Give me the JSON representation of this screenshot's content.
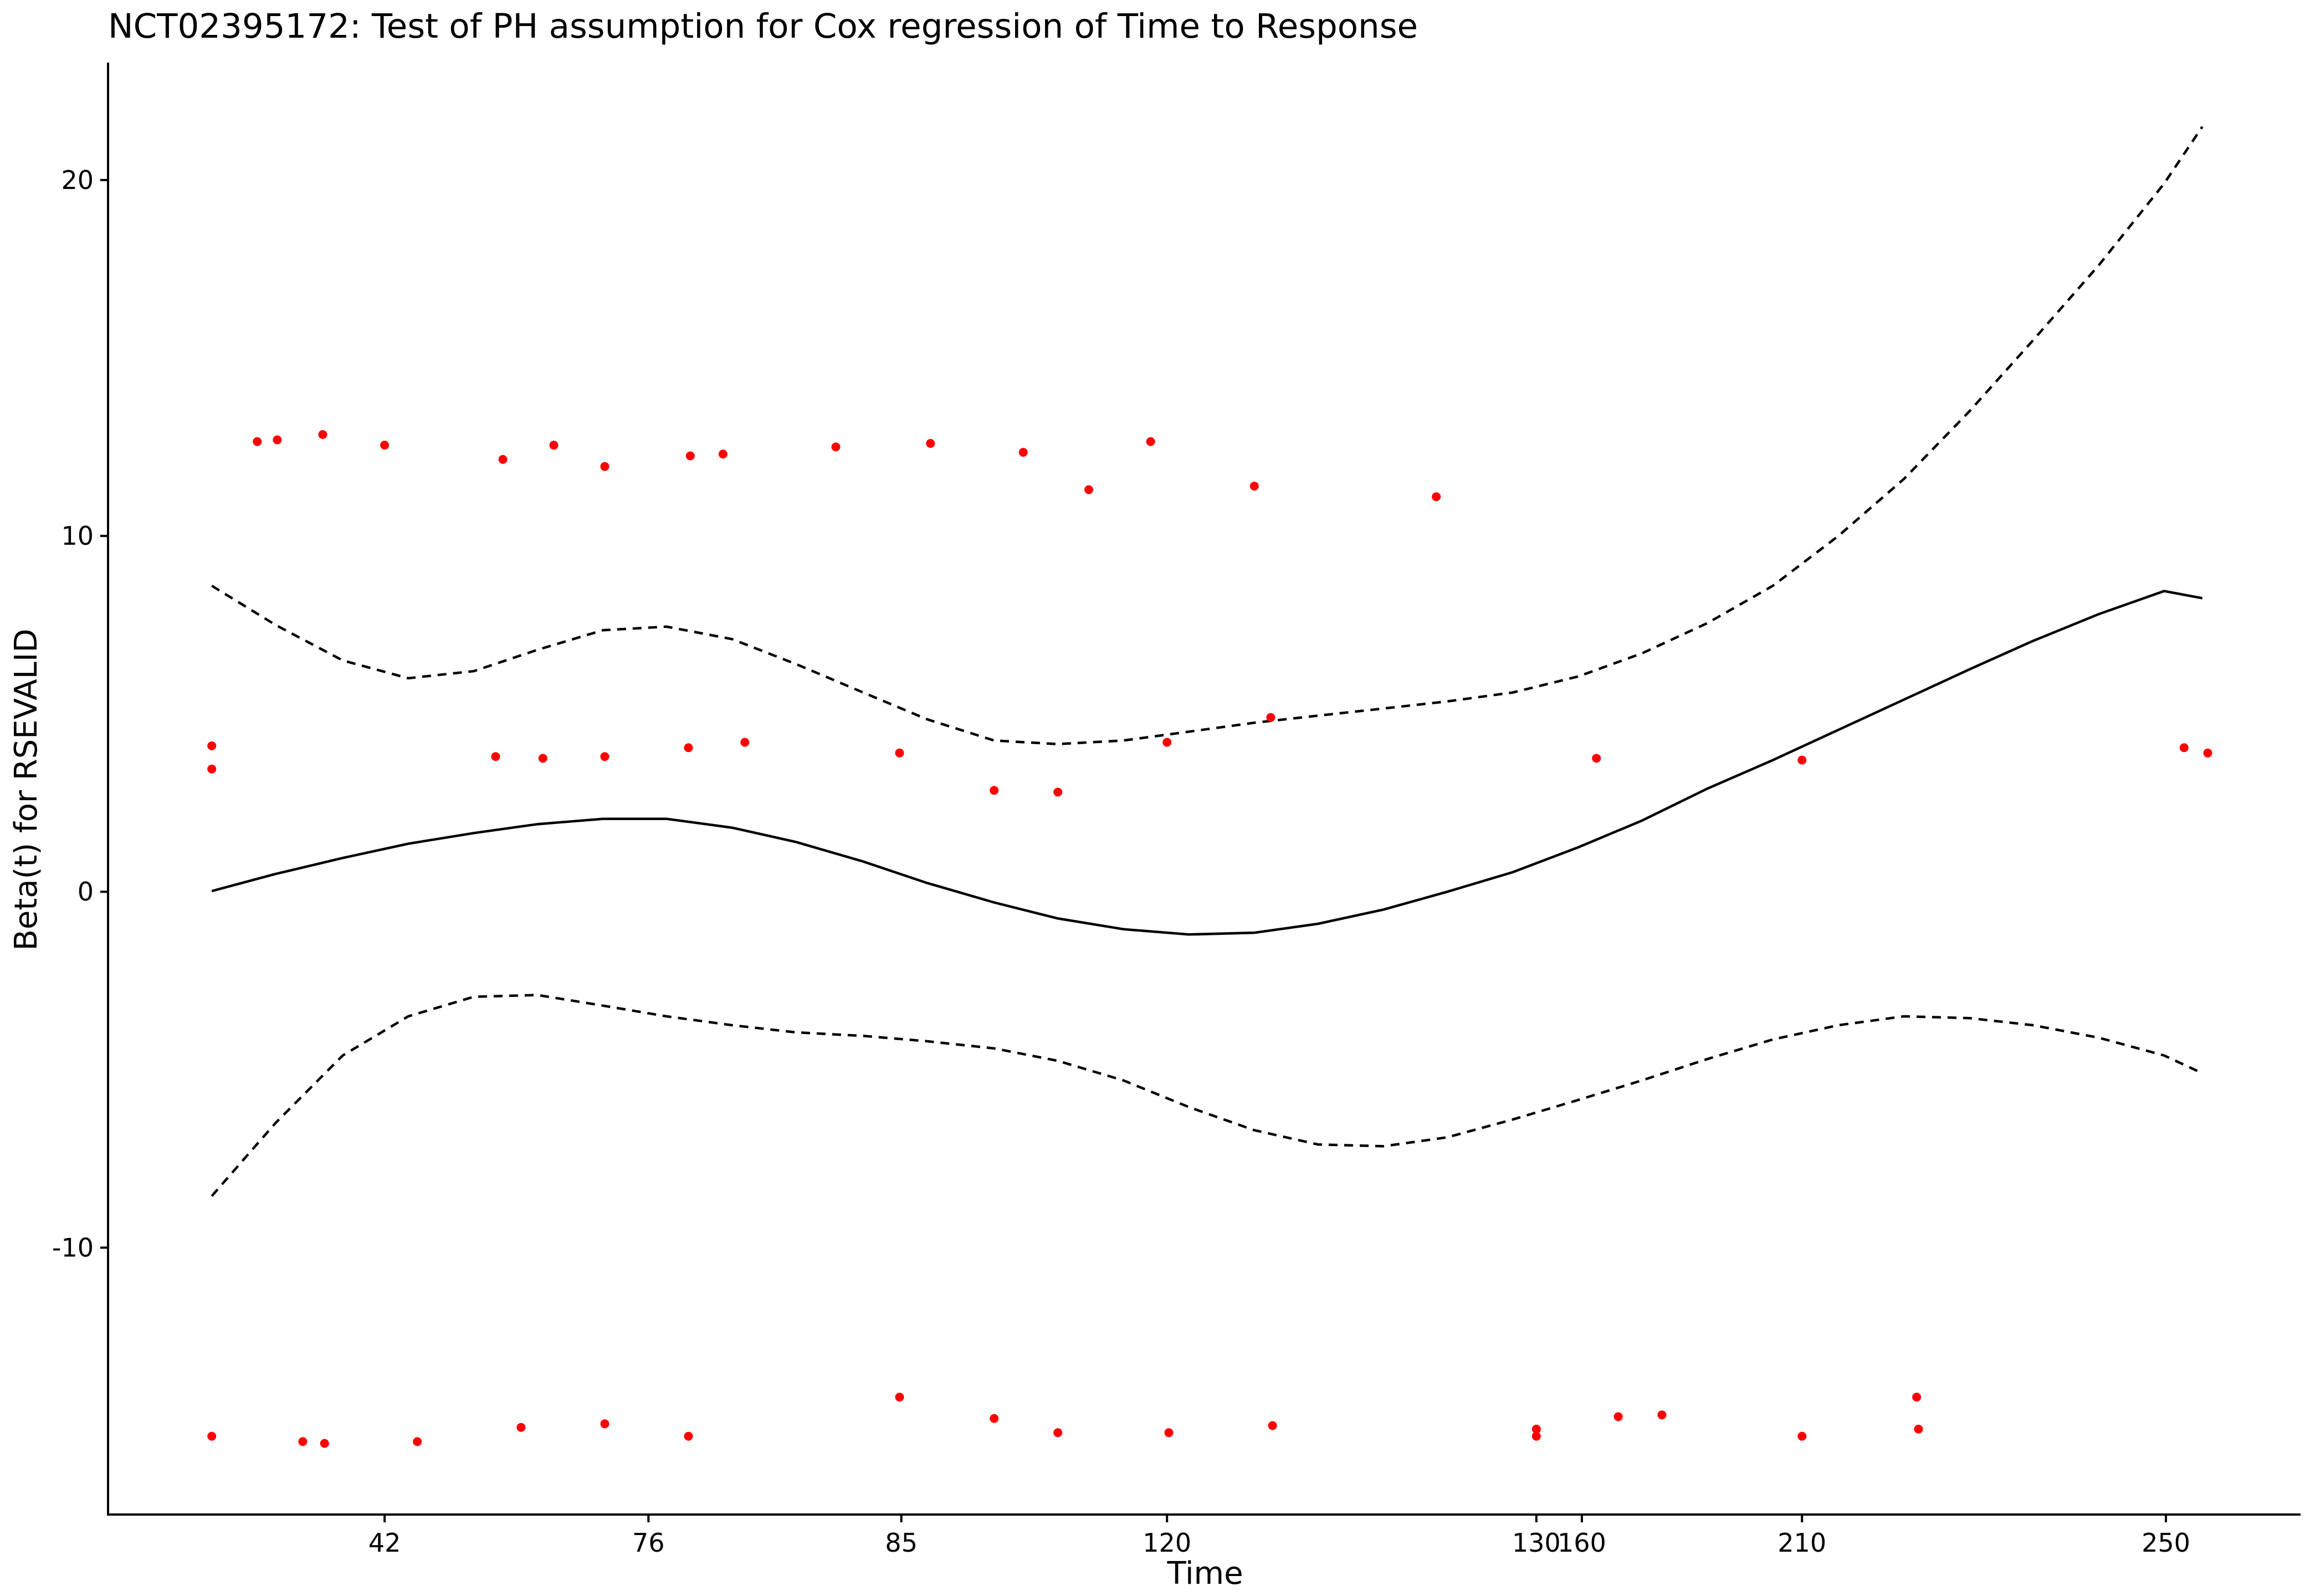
{
  "chart_data": {
    "type": "scatter",
    "title": "NCT02395172: Test of PH assumption for Cox regression of Time to Response",
    "xlabel": "Time",
    "ylabel": "Beta(t) for RSEVALID",
    "x_tick_labels": [
      "42",
      "76",
      "85",
      "120",
      "130",
      "160",
      "210",
      "250"
    ],
    "x_tick_positions": [
      2.07,
      3.52,
      4.91,
      6.37,
      8.4,
      8.65,
      9.86,
      11.86
    ],
    "xlim": [
      0.55,
      12.6
    ],
    "y_ticks": [
      -10,
      0,
      10,
      20
    ],
    "y_tick_labels": [
      "-10",
      "0",
      "10",
      "20"
    ],
    "ylim": [
      -17.5,
      23.3
    ],
    "grid": false,
    "colors": {
      "points": "#ff0000",
      "curves": "#000000"
    },
    "series": [
      {
        "type": "line",
        "style": "solid",
        "x": [
          1.12,
          1.47,
          1.84,
          2.2,
          2.56,
          2.91,
          3.27,
          3.62,
          3.98,
          4.33,
          4.7,
          5.05,
          5.42,
          5.77,
          6.13,
          6.49,
          6.85,
          7.2,
          7.56,
          7.91,
          8.27,
          8.63,
          8.98,
          9.34,
          9.7,
          10.06,
          10.42,
          10.78,
          11.13,
          11.49,
          11.85,
          12.06
        ],
        "y": [
          0.02,
          0.5,
          0.95,
          1.35,
          1.65,
          1.9,
          2.05,
          2.05,
          1.8,
          1.4,
          0.85,
          0.25,
          -0.3,
          -0.75,
          -1.05,
          -1.2,
          -1.15,
          -0.9,
          -0.5,
          0.0,
          0.55,
          1.25,
          2.0,
          2.9,
          3.7,
          4.55,
          5.4,
          6.25,
          7.05,
          7.8,
          8.45,
          8.25
        ]
      },
      {
        "type": "line",
        "style": "dashed",
        "x": [
          1.12,
          1.47,
          1.84,
          2.2,
          2.56,
          2.91,
          3.27,
          3.62,
          3.98,
          4.33,
          4.7,
          5.05,
          5.42,
          5.77,
          6.13,
          6.49,
          6.85,
          7.2,
          7.56,
          7.91,
          8.27,
          8.63,
          8.98,
          9.34,
          9.7,
          10.06,
          10.42,
          10.78,
          11.13,
          11.49,
          11.85,
          12.06
        ],
        "y": [
          8.6,
          7.5,
          6.5,
          6.0,
          6.2,
          6.8,
          7.35,
          7.45,
          7.1,
          6.4,
          5.6,
          4.85,
          4.25,
          4.15,
          4.25,
          4.5,
          4.75,
          4.95,
          5.15,
          5.35,
          5.6,
          6.05,
          6.7,
          7.55,
          8.6,
          10.0,
          11.6,
          13.5,
          15.5,
          17.6,
          19.9,
          21.5
        ]
      },
      {
        "type": "line",
        "style": "dashed",
        "x": [
          1.12,
          1.47,
          1.84,
          2.2,
          2.56,
          2.91,
          3.27,
          3.62,
          3.98,
          4.33,
          4.7,
          5.05,
          5.42,
          5.77,
          6.13,
          6.49,
          6.85,
          7.2,
          7.56,
          7.91,
          8.27,
          8.63,
          8.98,
          9.34,
          9.7,
          10.06,
          10.42,
          10.78,
          11.13,
          11.49,
          11.85,
          12.06
        ],
        "y": [
          -8.55,
          -6.5,
          -4.6,
          -3.5,
          -2.95,
          -2.9,
          -3.2,
          -3.5,
          -3.75,
          -3.95,
          -4.05,
          -4.2,
          -4.4,
          -4.75,
          -5.3,
          -6.05,
          -6.7,
          -7.1,
          -7.15,
          -6.9,
          -6.4,
          -5.85,
          -5.3,
          -4.7,
          -4.15,
          -3.75,
          -3.5,
          -3.55,
          -3.75,
          -4.1,
          -4.6,
          -5.1
        ]
      },
      {
        "type": "scatter",
        "x": [
          1.12,
          1.37,
          1.48,
          1.73,
          2.07,
          2.72,
          3.0,
          3.28,
          3.75,
          3.93,
          4.55,
          5.07,
          5.58,
          5.94,
          6.28,
          6.85,
          7.85,
          8.73,
          9.86,
          11.96,
          12.09,
          1.12,
          2.68,
          2.94,
          3.28,
          3.74,
          4.05,
          4.9,
          5.42,
          5.77,
          6.37,
          6.94,
          8.4,
          8.85,
          9.09,
          9.86,
          10.5,
          1.12,
          1.62,
          1.74,
          2.25,
          2.82,
          3.28,
          3.74,
          4.9,
          5.42,
          5.77,
          6.38,
          6.95,
          8.4,
          10.49
        ],
        "y": [
          4.1,
          12.65,
          12.7,
          12.85,
          12.55,
          12.15,
          12.55,
          11.95,
          12.25,
          12.3,
          12.5,
          12.6,
          12.35,
          11.3,
          12.65,
          11.4,
          11.1,
          3.75,
          3.7,
          4.05,
          3.9,
          3.45,
          3.8,
          3.75,
          3.8,
          4.05,
          4.2,
          3.9,
          2.85,
          2.8,
          4.2,
          4.9,
          -15.1,
          -14.75,
          -14.7,
          -15.3,
          -15.1,
          -15.3,
          -15.45,
          -15.5,
          -15.45,
          -15.05,
          -14.95,
          -15.3,
          -14.2,
          -14.8,
          -15.2,
          -15.2,
          -15.0,
          -15.3,
          -14.2
        ]
      }
    ]
  }
}
